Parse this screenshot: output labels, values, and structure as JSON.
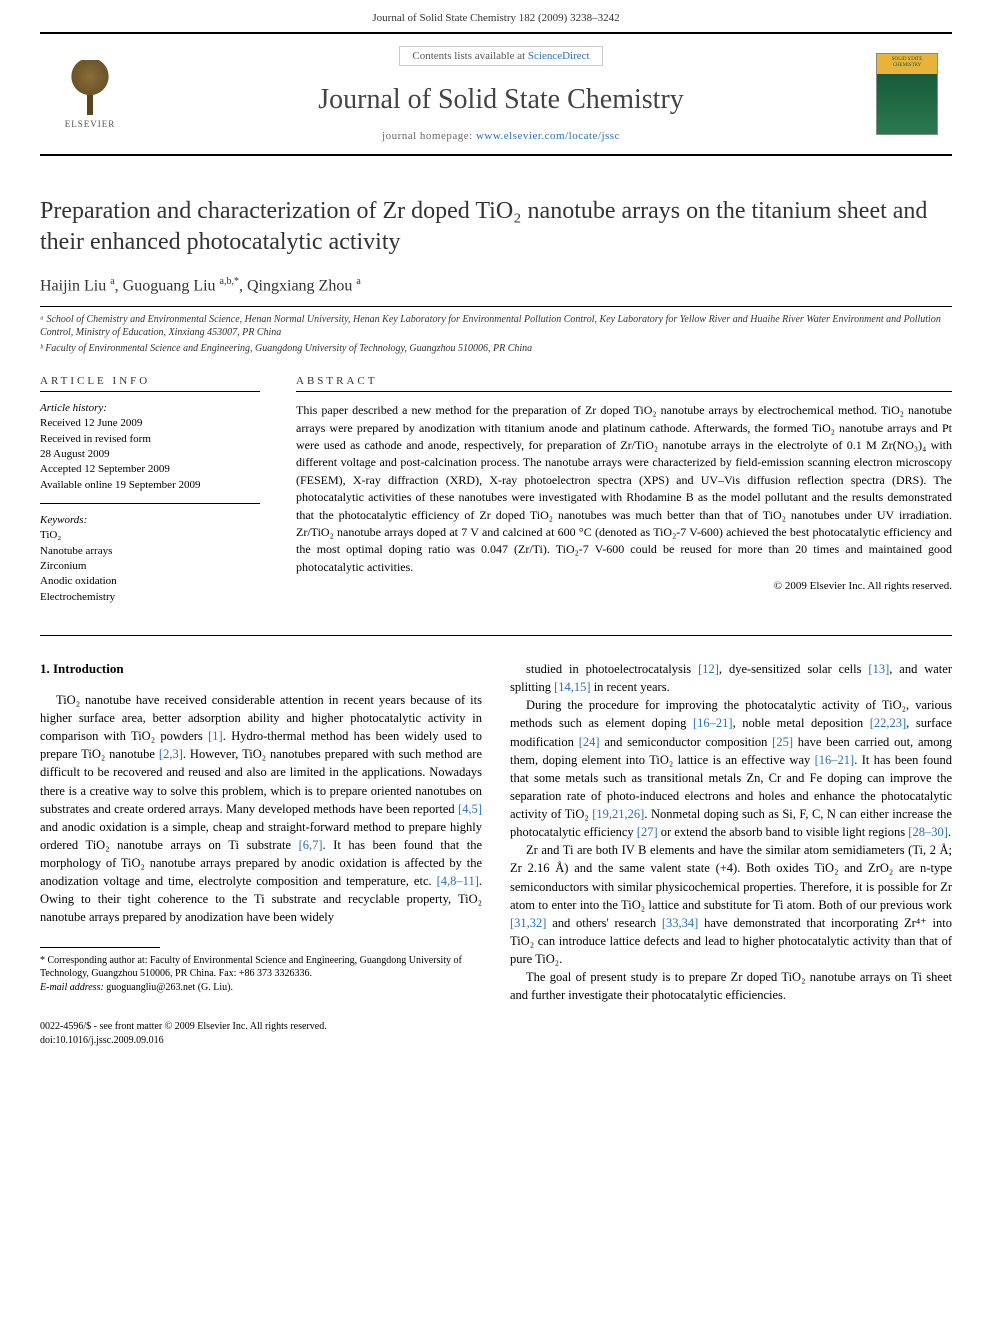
{
  "header": {
    "running_head": "Journal of Solid State Chemistry 182 (2009) 3238–3242"
  },
  "banner": {
    "contents_prefix": "Contents lists available at ",
    "contents_link": "ScienceDirect",
    "journal_name": "Journal of Solid State Chemistry",
    "homepage_prefix": "journal homepage: ",
    "homepage_link": "www.elsevier.com/locate/jssc",
    "publisher_name": "ELSEVIER",
    "cover_title_line1": "SOLID STATE",
    "cover_title_line2": "CHEMISTRY"
  },
  "article": {
    "title": "Preparation and characterization of Zr doped TiO₂ nanotube arrays on the titanium sheet and their enhanced photocatalytic activity",
    "authors_html": "Haijin Liu <sup>a</sup>, Guoguang Liu <sup>a,b,*</sup>, Qingxiang Zhou <sup>a</sup>",
    "affiliations": [
      "ᵃ School of Chemistry and Environmental Science, Henan Normal University, Henan Key Laboratory for Environmental Pollution Control, Key Laboratory for Yellow River and Huaihe River Water Environment and Pollution Control, Ministry of Education, Xinxiang 453007, PR China",
      "ᵇ Faculty of Environmental Science and Engineering, Guangdong University of Technology, Guangzhou 510006, PR China"
    ]
  },
  "info": {
    "article_info_label": "ARTICLE INFO",
    "history_label": "Article history:",
    "history": [
      "Received 12 June 2009",
      "Received in revised form",
      "28 August 2009",
      "Accepted 12 September 2009",
      "Available online 19 September 2009"
    ],
    "keywords_label": "Keywords:",
    "keywords": [
      "TiO₂",
      "Nanotube arrays",
      "Zirconium",
      "Anodic oxidation",
      "Electrochemistry"
    ]
  },
  "abstract": {
    "label": "ABSTRACT",
    "text": "This paper described a new method for the preparation of Zr doped TiO₂ nanotube arrays by electrochemical method. TiO₂ nanotube arrays were prepared by anodization with titanium anode and platinum cathode. Afterwards, the formed TiO₂ nanotube arrays and Pt were used as cathode and anode, respectively, for preparation of Zr/TiO₂ nanotube arrays in the electrolyte of 0.1 M Zr(NO₃)₄ with different voltage and post-calcination process. The nanotube arrays were characterized by field-emission scanning electron microscopy (FESEM), X-ray diffraction (XRD), X-ray photoelectron spectra (XPS) and UV–Vis diffusion reflection spectra (DRS). The photocatalytic activities of these nanotubes were investigated with Rhodamine B as the model pollutant and the results demonstrated that the photocatalytic efficiency of Zr doped TiO₂ nanotubes was much better than that of TiO₂ nanotubes under UV irradiation. Zr/TiO₂ nanotube arrays doped at 7 V and calcined at 600 °C (denoted as TiO₂-7 V-600) achieved the best photocatalytic efficiency and the most optimal doping ratio was 0.047 (Zr/Ti). TiO₂-7 V-600 could be reused for more than 20 times and maintained good photocatalytic activities.",
    "copyright": "© 2009 Elsevier Inc. All rights reserved."
  },
  "body": {
    "section_heading": "1. Introduction",
    "col1": [
      "TiO₂ nanotube have received considerable attention in recent years because of its higher surface area, better adsorption ability and higher photocatalytic activity in comparison with TiO₂ powders [1]. Hydro-thermal method has been widely used to prepare TiO₂ nanotube [2,3]. However, TiO₂ nanotubes prepared with such method are difficult to be recovered and reused and also are limited in the applications. Nowadays there is a creative way to solve this problem, which is to prepare oriented nanotubes on substrates and create ordered arrays. Many developed methods have been reported [4,5] and anodic oxidation is a simple, cheap and straight-forward method to prepare highly ordered TiO₂ nanotube arrays on Ti substrate [6,7]. It has been found that the morphology of TiO₂ nanotube arrays prepared by anodic oxidation is affected by the anodization voltage and time, electrolyte composition and temperature, etc. [4,8–11]. Owing to their tight coherence to the Ti substrate and recyclable property, TiO₂ nanotube arrays prepared by anodization have been widely"
    ],
    "col2": [
      "studied in photoelectrocatalysis [12], dye-sensitized solar cells [13], and water splitting [14,15] in recent years.",
      "During the procedure for improving the photocatalytic activity of TiO₂, various methods such as element doping [16–21], noble metal deposition [22,23], surface modification [24] and semiconductor composition [25] have been carried out, among them, doping element into TiO₂ lattice is an effective way [16–21]. It has been found that some metals such as transitional metals Zn, Cr and Fe doping can improve the separation rate of photo-induced electrons and holes and enhance the photocatalytic activity of TiO₂ [19,21,26]. Nonmetal doping such as Si, F, C, N can either increase the photocatalytic efficiency [27] or extend the absorb band to visible light regions [28–30].",
      "Zr and Ti are both IV B elements and have the similar atom semidiameters (Ti, 2 Å; Zr 2.16 Å) and the same valent state (+4). Both oxides TiO₂ and ZrO₂ are n-type semiconductors with similar physicochemical properties. Therefore, it is possible for Zr atom to enter into the TiO₂ lattice and substitute for Ti atom. Both of our previous work [31,32] and others' research [33,34] have demonstrated that incorporating Zr⁴⁺ into TiO₂ can introduce lattice defects and lead to higher photocatalytic activity than that of pure TiO₂.",
      "The goal of present study is to prepare Zr doped TiO₂ nanotube arrays on Ti sheet and further investigate their photocatalytic efficiencies."
    ]
  },
  "footnote": {
    "corr": "* Corresponding author at: Faculty of Environmental Science and Engineering, Guangdong University of Technology, Guangzhou 510006, PR China. Fax: +86 373 3326336.",
    "email_label": "E-mail address:",
    "email": "guoguangliu@263.net (G. Liu)."
  },
  "footer": {
    "line1": "0022-4596/$ - see front matter © 2009 Elsevier Inc. All rights reserved.",
    "line2": "doi:10.1016/j.jssc.2009.09.016"
  },
  "colors": {
    "link": "#2a6fb5",
    "text": "#000000",
    "accent_green": "#1a5a3a",
    "accent_gold": "#e8b33a"
  }
}
